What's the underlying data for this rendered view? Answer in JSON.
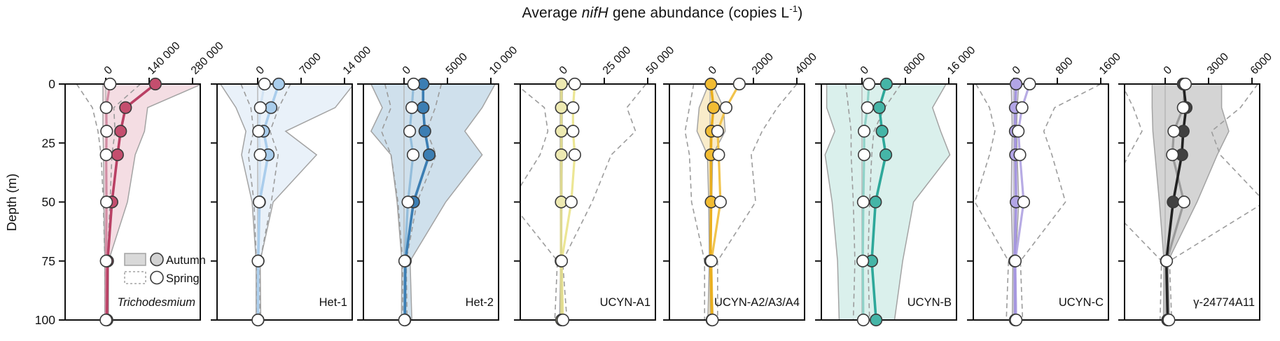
{
  "title": {
    "prefix": "Average ",
    "italic": "nifH",
    "middle": " gene abundance (copies L",
    "sup": "-1",
    "suffix": ")"
  },
  "y_axis": {
    "label": "Depth (m)",
    "tick_labels": [
      "0",
      "25",
      "50",
      "75",
      "100"
    ],
    "ticks": [
      0,
      25,
      50,
      75,
      100
    ]
  },
  "legend": {
    "autumn_label": "Autumn",
    "spring_label": "Spring"
  },
  "style_colors": {
    "axis": "#111111",
    "zero_gridline": "#b5b5b5",
    "band_outline": "#a3a3a3",
    "spring_dash": "#9c9c9c",
    "circle_stroke": "#3a3a3a",
    "spring_circle_fill": "#ffffff",
    "legend_swatch_fill": "#d9d9d9"
  },
  "chart_data": [
    {
      "type": "line",
      "label": "Trichodesmium",
      "label_italic": true,
      "id": "trichodesmium",
      "x_ticks": {
        "labels": [
          "0",
          "140 000",
          "280 000"
        ],
        "values": [
          0,
          140000,
          280000
        ]
      },
      "colors": {
        "autumn_line": "#b94064",
        "autumn_fill": "#c44e6e",
        "spring_line": "#d28ca3",
        "band_fill": "#f4dde3"
      },
      "depths_m": [
        0,
        10,
        20,
        30,
        50,
        75,
        100
      ],
      "series": {
        "autumn_mean": [
          160000,
          64000,
          48000,
          38000,
          20000,
          6000,
          4000
        ],
        "spring_mean": [
          14000,
          1500,
          3000,
          1500,
          2500,
          1500,
          800
        ],
        "autumn_range_high": [
          310000,
          135000,
          125000,
          95000,
          70000,
          9000,
          9000
        ],
        "autumn_range_low": [
          -9000,
          -9000,
          -9000,
          -7000,
          -6000,
          -3000,
          -3000
        ],
        "spring_range_high": [
          112000,
          26000,
          30000,
          20000,
          14000,
          5000,
          3000
        ],
        "spring_range_low": [
          -94000,
          -43000,
          -25000,
          -15000,
          -8000,
          -3000,
          -2000
        ]
      }
    },
    {
      "type": "line",
      "label": "Het-1",
      "label_italic": false,
      "id": "het-1",
      "x_ticks": {
        "labels": [
          "0",
          "7000",
          "14 000"
        ],
        "values": [
          0,
          7000,
          14000
        ]
      },
      "colors": {
        "autumn_line": "#aacdec",
        "autumn_fill": "#a9cdec",
        "spring_line": "#d2e3f3",
        "band_fill": "#e9f1f9"
      },
      "depths_m": [
        0,
        10,
        20,
        30,
        50,
        75,
        100
      ],
      "series": {
        "autumn_mean": [
          3400,
          2150,
          950,
          1700,
          300,
          80,
          60
        ],
        "spring_mean": [
          1100,
          430,
          150,
          400,
          250,
          60,
          40
        ],
        "autumn_range_high": [
          15500,
          12500,
          4500,
          9500,
          2500,
          400,
          500
        ],
        "autumn_range_low": [
          -6000,
          -3500,
          -1900,
          -2600,
          -900,
          -250,
          -250
        ],
        "spring_range_high": [
          5300,
          3400,
          2000,
          3300,
          2200,
          400,
          300
        ],
        "spring_range_low": [
          -2700,
          -1100,
          -650,
          -1500,
          -600,
          -200,
          -150
        ]
      }
    },
    {
      "type": "line",
      "label": "Het-2",
      "label_italic": false,
      "id": "het-2",
      "x_ticks": {
        "labels": [
          "0",
          "5000",
          "10 000"
        ],
        "values": [
          0,
          5000,
          10000
        ]
      },
      "colors": {
        "autumn_line": "#3c7eb3",
        "autumn_fill": "#3c7eb3",
        "spring_line": "#93bddb",
        "band_fill": "#cfe0ec"
      },
      "depths_m": [
        0,
        10,
        20,
        30,
        50,
        75,
        100
      ],
      "series": {
        "autumn_mean": [
          2200,
          2200,
          2400,
          2900,
          1100,
          150,
          100
        ],
        "spring_mean": [
          1100,
          900,
          650,
          1050,
          450,
          80,
          60
        ],
        "autumn_range_high": [
          10500,
          9000,
          7000,
          9000,
          4800,
          700,
          900
        ],
        "autumn_range_low": [
          -3800,
          -2500,
          -3800,
          -1500,
          -800,
          -250,
          -300
        ],
        "spring_range_high": [
          4300,
          3600,
          2600,
          3700,
          1500,
          250,
          350
        ],
        "spring_range_low": [
          -2200,
          -1500,
          -2600,
          -1500,
          -700,
          -150,
          -150
        ]
      }
    },
    {
      "type": "line",
      "label": "UCYN-A1",
      "label_italic": false,
      "id": "ucyn-a1",
      "x_ticks": {
        "labels": [
          "0",
          "25 000",
          "50 000"
        ],
        "values": [
          0,
          25000,
          50000
        ]
      },
      "colors": {
        "autumn_line": "#ddd890",
        "autumn_fill": "#eeeab2",
        "spring_line": "#ece694",
        "band_fill": "#f6f3d3"
      },
      "depths_m": [
        0,
        10,
        20,
        30,
        50,
        75,
        100
      ],
      "series": {
        "autumn_mean": [
          300,
          250,
          250,
          250,
          200,
          100,
          400
        ],
        "spring_mean": [
          8000,
          7000,
          7000,
          8000,
          6000,
          400,
          1200
        ],
        "autumn_range_high": [
          900,
          800,
          800,
          800,
          600,
          300,
          1500
        ],
        "autumn_range_low": [
          -400,
          -400,
          -400,
          -400,
          -300,
          -150,
          -700
        ],
        "spring_range_high": [
          49000,
          38000,
          43000,
          29000,
          18000,
          1000,
          3500
        ],
        "spring_range_low": [
          -26000,
          -9500,
          -7500,
          -12000,
          -29000,
          -2000,
          -3500
        ]
      }
    },
    {
      "type": "line",
      "label": "UCYN-A2/A3/A4",
      "label_italic": false,
      "id": "ucyn-a2-a3-a4",
      "x_ticks": {
        "labels": [
          "0",
          "2000",
          "4000"
        ],
        "values": [
          0,
          2000,
          4000
        ]
      },
      "colors": {
        "autumn_line": "#e9ae1e",
        "autumn_fill": "#f2bc32",
        "spring_line": "#f1c34c",
        "band_fill": "#f9ecca"
      },
      "depths_m": [
        0,
        10,
        20,
        30,
        50,
        75,
        100
      ],
      "series": {
        "autumn_mean": [
          40,
          160,
          60,
          40,
          50,
          20,
          90
        ],
        "spring_mean": [
          1350,
          740,
          350,
          400,
          480,
          60,
          110
        ],
        "autumn_range_high": [
          120,
          620,
          700,
          120,
          80,
          40,
          150
        ],
        "autumn_range_low": [
          -60,
          -500,
          -600,
          -120,
          -60,
          -30,
          -100
        ],
        "spring_range_high": [
          4000,
          3100,
          2400,
          1900,
          2100,
          350,
          350
        ],
        "spring_range_low": [
          -750,
          -950,
          -1150,
          -950,
          -850,
          -250,
          -250
        ]
      }
    },
    {
      "type": "line",
      "label": "UCYN-B",
      "label_italic": false,
      "id": "ucyn-b",
      "x_ticks": {
        "labels": [
          "0",
          "8000",
          "16 000"
        ],
        "values": [
          0,
          8000,
          16000
        ]
      },
      "colors": {
        "autumn_line": "#2ea89a",
        "autumn_fill": "#45b5a7",
        "spring_line": "#8fd2c8",
        "band_fill": "#daf0ec"
      },
      "depths_m": [
        0,
        10,
        20,
        30,
        50,
        75,
        100
      ],
      "series": {
        "autumn_mean": [
          4500,
          3200,
          3700,
          4400,
          2500,
          1800,
          2600
        ],
        "spring_mean": [
          1300,
          1000,
          400,
          400,
          250,
          150,
          250
        ],
        "autumn_range_high": [
          15500,
          13000,
          14500,
          16200,
          9500,
          7500,
          6000
        ],
        "autumn_range_low": [
          -6500,
          -6500,
          -5000,
          -6800,
          -5500,
          -4500,
          -4200
        ],
        "spring_range_high": [
          7200,
          4200,
          2200,
          1800,
          1400,
          1100,
          1400
        ],
        "spring_range_low": [
          -3000,
          -2500,
          -2000,
          -2000,
          -1600,
          -1300,
          -1600
        ]
      }
    },
    {
      "type": "line",
      "label": "UCYN-C",
      "label_italic": false,
      "id": "ucyn-c",
      "x_ticks": {
        "labels": [
          "0",
          "800",
          "1600"
        ],
        "values": [
          0,
          800,
          1600
        ]
      },
      "colors": {
        "autumn_line": "#a596e0",
        "autumn_fill": "#b2a5e6",
        "spring_line": "#b7abe4",
        "band_fill": "#e6e1f6"
      },
      "depths_m": [
        0,
        10,
        20,
        30,
        50,
        75,
        100
      ],
      "series": {
        "autumn_mean": [
          40,
          25,
          25,
          30,
          40,
          15,
          25
        ],
        "spring_mean": [
          290,
          150,
          80,
          110,
          180,
          25,
          40
        ],
        "autumn_range_high": [
          90,
          60,
          50,
          60,
          90,
          30,
          50
        ],
        "autumn_range_low": [
          -50,
          -40,
          -30,
          -40,
          -50,
          -20,
          -30
        ],
        "spring_range_high": [
          1600,
          750,
          550,
          700,
          950,
          120,
          160
        ],
        "spring_range_low": [
          -700,
          -450,
          -350,
          -450,
          -720,
          -100,
          -140
        ]
      }
    },
    {
      "type": "line",
      "label": "γ-24774A11",
      "label_italic": false,
      "id": "gamma-24774a11",
      "x_ticks": {
        "labels": [
          "0",
          "3000",
          "6000"
        ],
        "values": [
          0,
          3000,
          6000
        ]
      },
      "colors": {
        "autumn_line": "#222222",
        "autumn_fill": "#414141",
        "spring_line": "#9b9b9b",
        "band_fill": "#d4d4d4"
      },
      "depths_m": [
        0,
        10,
        20,
        30,
        50,
        75,
        100
      ],
      "series": {
        "autumn_mean": [
          1250,
          1450,
          1250,
          1150,
          550,
          80,
          170
        ],
        "spring_mean": [
          1400,
          1250,
          600,
          500,
          1300,
          100,
          260
        ],
        "autumn_range_high": [
          3900,
          3900,
          4400,
          3600,
          2200,
          200,
          300
        ],
        "autumn_range_low": [
          -900,
          -900,
          -850,
          -700,
          -400,
          -80,
          -120
        ],
        "spring_range_high": [
          6400,
          5200,
          3200,
          3800,
          6900,
          300,
          450
        ],
        "spring_range_low": [
          -3000,
          -2200,
          -1600,
          -2500,
          -4200,
          -250,
          -350
        ]
      }
    }
  ]
}
